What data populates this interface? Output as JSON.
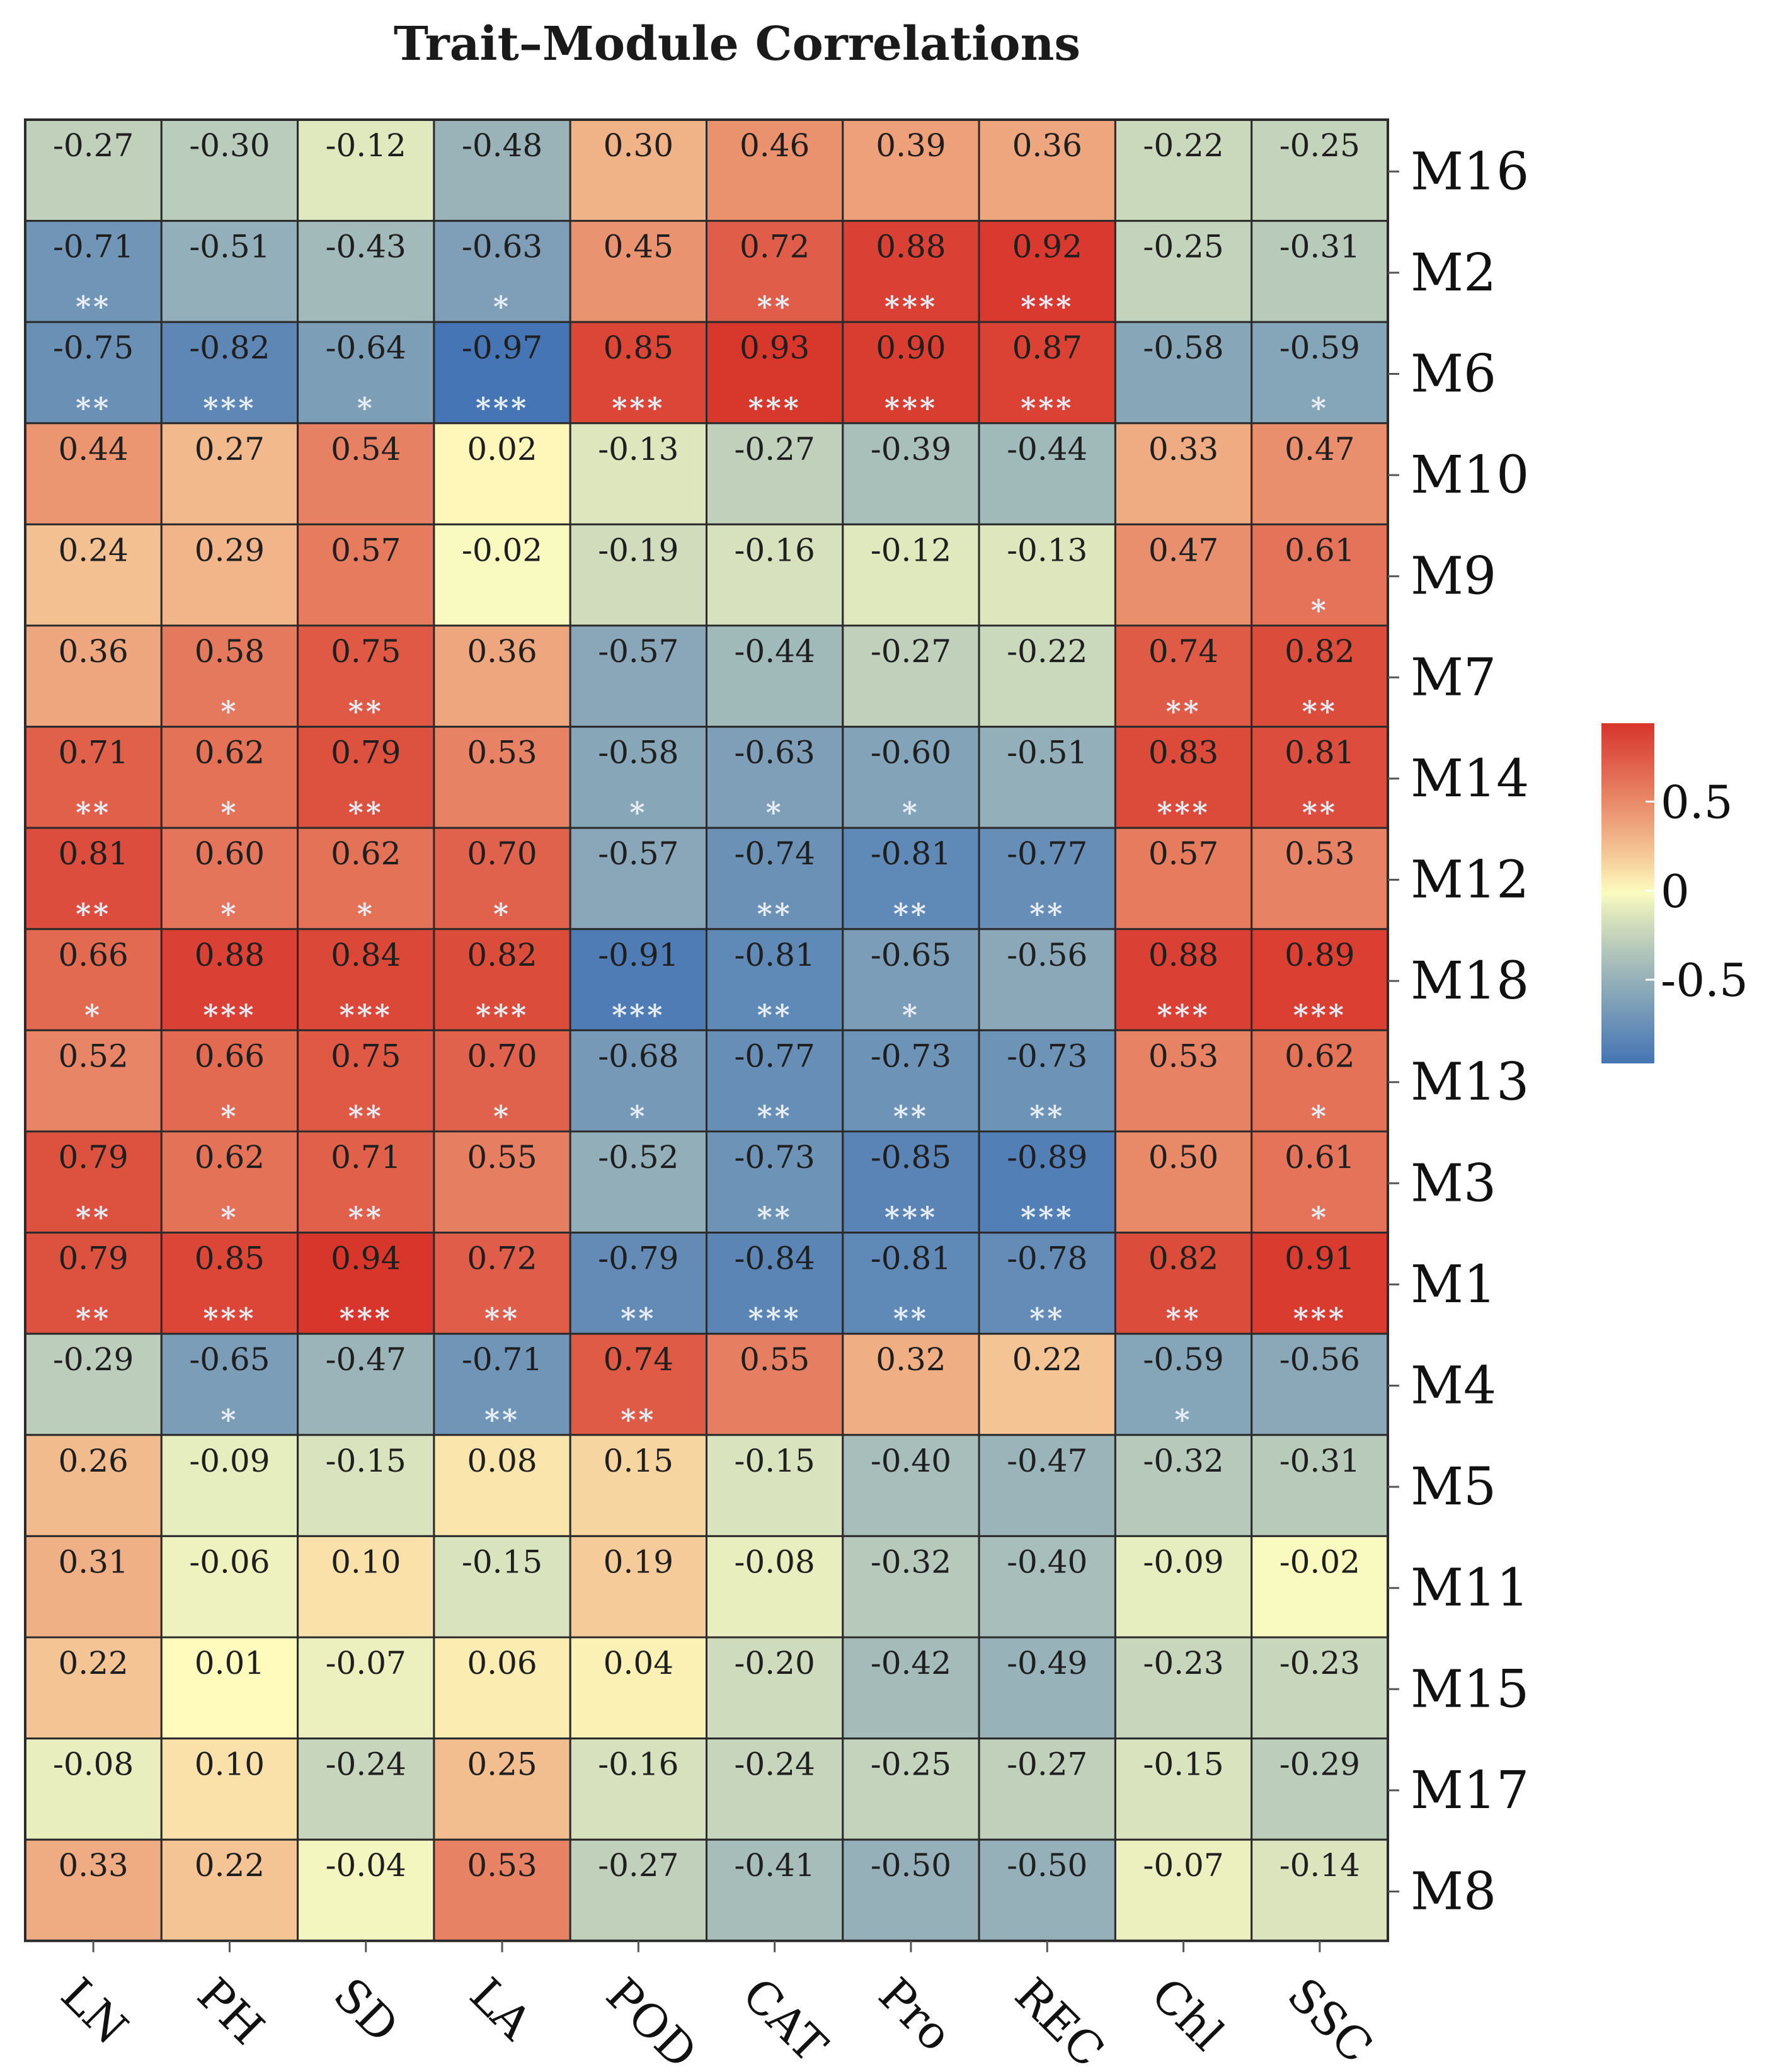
{
  "chart_data": {
    "type": "heatmap",
    "title": "Trait–Module Correlations",
    "columns": [
      "LN",
      "PH",
      "SD",
      "LA",
      "POD",
      "CAT",
      "Pro",
      "REC",
      "Chl",
      "SSC"
    ],
    "rows": [
      "M16",
      "M2",
      "M6",
      "M10",
      "M9",
      "M7",
      "M14",
      "M12",
      "M18",
      "M13",
      "M3",
      "M1",
      "M4",
      "M5",
      "M11",
      "M15",
      "M17",
      "M8"
    ],
    "values": [
      [
        "-0.27",
        "-0.30",
        "-0.12",
        "-0.48",
        "0.30",
        "0.46",
        "0.39",
        "0.36",
        "-0.22",
        "-0.25"
      ],
      [
        "-0.71",
        "-0.51",
        "-0.43",
        "-0.63",
        "0.45",
        "0.72",
        "0.88",
        "0.92",
        "-0.25",
        "-0.31"
      ],
      [
        "-0.75",
        "-0.82",
        "-0.64",
        "-0.97",
        "0.85",
        "0.93",
        "0.90",
        "0.87",
        "-0.58",
        "-0.59"
      ],
      [
        "0.44",
        "0.27",
        "0.54",
        "0.02",
        "-0.13",
        "-0.27",
        "-0.39",
        "-0.44",
        "0.33",
        "0.47"
      ],
      [
        "0.24",
        "0.29",
        "0.57",
        "-0.02",
        "-0.19",
        "-0.16",
        "-0.12",
        "-0.13",
        "0.47",
        "0.61"
      ],
      [
        "0.36",
        "0.58",
        "0.75",
        "0.36",
        "-0.57",
        "-0.44",
        "-0.27",
        "-0.22",
        "0.74",
        "0.82"
      ],
      [
        "0.71",
        "0.62",
        "0.79",
        "0.53",
        "-0.58",
        "-0.63",
        "-0.60",
        "-0.51",
        "0.83",
        "0.81"
      ],
      [
        "0.81",
        "0.60",
        "0.62",
        "0.70",
        "-0.57",
        "-0.74",
        "-0.81",
        "-0.77",
        "0.57",
        "0.53"
      ],
      [
        "0.66",
        "0.88",
        "0.84",
        "0.82",
        "-0.91",
        "-0.81",
        "-0.65",
        "-0.56",
        "0.88",
        "0.89"
      ],
      [
        "0.52",
        "0.66",
        "0.75",
        "0.70",
        "-0.68",
        "-0.77",
        "-0.73",
        "-0.73",
        "0.53",
        "0.62"
      ],
      [
        "0.79",
        "0.62",
        "0.71",
        "0.55",
        "-0.52",
        "-0.73",
        "-0.85",
        "-0.89",
        "0.50",
        "0.61"
      ],
      [
        "0.79",
        "0.85",
        "0.94",
        "0.72",
        "-0.79",
        "-0.84",
        "-0.81",
        "-0.78",
        "0.82",
        "0.91"
      ],
      [
        "-0.29",
        "-0.65",
        "-0.47",
        "-0.71",
        "0.74",
        "0.55",
        "0.32",
        "0.22",
        "-0.59",
        "-0.56"
      ],
      [
        "0.26",
        "-0.09",
        "-0.15",
        "0.08",
        "0.15",
        "-0.15",
        "-0.40",
        "-0.47",
        "-0.32",
        "-0.31"
      ],
      [
        "0.31",
        "-0.06",
        "0.10",
        "-0.15",
        "0.19",
        "-0.08",
        "-0.32",
        "-0.40",
        "-0.09",
        "-0.02"
      ],
      [
        "0.22",
        "0.01",
        "-0.07",
        "0.06",
        "0.04",
        "-0.20",
        "-0.42",
        "-0.49",
        "-0.23",
        "-0.23"
      ],
      [
        "-0.08",
        "0.10",
        "-0.24",
        "0.25",
        "-0.16",
        "-0.24",
        "-0.25",
        "-0.27",
        "-0.15",
        "-0.29"
      ],
      [
        "0.33",
        "0.22",
        "-0.04",
        "0.53",
        "-0.27",
        "-0.41",
        "-0.50",
        "-0.50",
        "-0.07",
        "-0.14"
      ]
    ],
    "significance": [
      [
        "",
        "",
        "",
        "",
        "",
        "",
        "",
        "",
        "",
        ""
      ],
      [
        "**",
        "",
        "",
        "*",
        "",
        "**",
        "***",
        "***",
        "",
        ""
      ],
      [
        "**",
        "***",
        "*",
        "***",
        "***",
        "***",
        "***",
        "***",
        "",
        "*"
      ],
      [
        "",
        "",
        "",
        "",
        "",
        "",
        "",
        "",
        "",
        ""
      ],
      [
        "",
        "",
        "",
        "",
        "",
        "",
        "",
        "",
        "",
        "*"
      ],
      [
        "",
        "*",
        "**",
        "",
        "",
        "",
        "",
        "",
        "**",
        "**"
      ],
      [
        "**",
        "*",
        "**",
        "",
        "*",
        "*",
        "*",
        "",
        "***",
        "**"
      ],
      [
        "**",
        "*",
        "*",
        "*",
        "",
        "**",
        "**",
        "**",
        "",
        ""
      ],
      [
        "*",
        "***",
        "***",
        "***",
        "***",
        "**",
        "*",
        "",
        "***",
        "***"
      ],
      [
        "",
        "*",
        "**",
        "*",
        "*",
        "**",
        "**",
        "**",
        "",
        "*"
      ],
      [
        "**",
        "*",
        "**",
        "",
        "",
        "**",
        "***",
        "***",
        "",
        "*"
      ],
      [
        "**",
        "***",
        "***",
        "**",
        "**",
        "***",
        "**",
        "**",
        "**",
        "***"
      ],
      [
        "",
        "*",
        "",
        "**",
        "**",
        "",
        "",
        "",
        "*",
        ""
      ],
      [
        "",
        "",
        "",
        "",
        "",
        "",
        "",
        "",
        "",
        ""
      ],
      [
        "",
        "",
        "",
        "",
        "",
        "",
        "",
        "",
        "",
        ""
      ],
      [
        "",
        "",
        "",
        "",
        "",
        "",
        "",
        "",
        "",
        ""
      ],
      [
        "",
        "",
        "",
        "",
        "",
        "",
        "",
        "",
        "",
        ""
      ],
      [
        "",
        "",
        "",
        "",
        "",
        "",
        "",
        "",
        "",
        ""
      ]
    ],
    "colorbar": {
      "ticks": [
        "0.5",
        "0",
        "-0.5"
      ],
      "tick_values": [
        0.5,
        0,
        -0.5
      ],
      "range": [
        -0.97,
        0.94
      ],
      "colors": {
        "low": "#4575b4",
        "mid": "#ffffbf",
        "high": "#d73027"
      }
    },
    "xlabel": "",
    "ylabel": ""
  }
}
